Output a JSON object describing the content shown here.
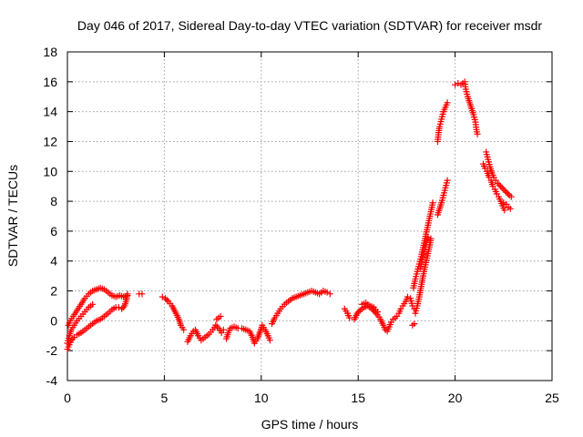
{
  "chart_data": {
    "type": "scatter",
    "title": "Day 046 of 2017, Sidereal Day-to-day VTEC variation (SDTVAR) for receiver msdr",
    "xlabel": "GPS time / hours",
    "ylabel": "SDTVAR / TECUs",
    "xlim": [
      0,
      25
    ],
    "ylim": [
      -4,
      18
    ],
    "xticks": [
      0,
      5,
      10,
      15,
      20,
      25
    ],
    "yticks": [
      -4,
      -2,
      0,
      2,
      4,
      6,
      8,
      10,
      12,
      14,
      16,
      18
    ],
    "grid": true,
    "marker": "+",
    "series": [
      {
        "name": "SDTVAR",
        "color": "#ff0000",
        "segments": [
          [
            [
              0.0,
              -1.9
            ],
            [
              0.1,
              -1.6
            ],
            [
              0.2,
              -1.3
            ],
            [
              0.35,
              -1.1
            ],
            [
              0.5,
              -0.95
            ],
            [
              0.7,
              -0.8
            ],
            [
              0.9,
              -0.6
            ],
            [
              1.1,
              -0.4
            ],
            [
              1.3,
              -0.2
            ],
            [
              1.5,
              0.0
            ],
            [
              1.7,
              0.1
            ],
            [
              1.9,
              0.3
            ],
            [
              2.1,
              0.5
            ],
            [
              2.3,
              0.75
            ],
            [
              2.5,
              0.9
            ],
            [
              2.65,
              0.9
            ],
            [
              2.8,
              0.8
            ],
            [
              2.95,
              1.0
            ],
            [
              3.05,
              1.4
            ],
            [
              3.1,
              1.8
            ]
          ],
          [
            [
              0.0,
              -1.5
            ],
            [
              0.1,
              -1.0
            ],
            [
              0.2,
              -0.6
            ],
            [
              0.35,
              -0.3
            ],
            [
              0.5,
              0.0
            ],
            [
              0.7,
              0.3
            ],
            [
              0.9,
              0.6
            ],
            [
              1.1,
              0.9
            ],
            [
              1.3,
              1.1
            ]
          ],
          [
            [
              0.05,
              -0.3
            ],
            [
              0.15,
              0.0
            ],
            [
              0.3,
              0.3
            ],
            [
              0.5,
              0.7
            ],
            [
              0.7,
              1.1
            ],
            [
              0.9,
              1.5
            ],
            [
              1.1,
              1.8
            ],
            [
              1.3,
              2.0
            ],
            [
              1.5,
              2.1
            ],
            [
              1.7,
              2.2
            ],
            [
              1.9,
              2.1
            ],
            [
              2.1,
              1.9
            ],
            [
              2.3,
              1.7
            ],
            [
              2.5,
              1.6
            ],
            [
              2.7,
              1.7
            ],
            [
              2.9,
              1.6
            ],
            [
              3.1,
              1.7
            ]
          ],
          [
            [
              3.7,
              1.8
            ],
            [
              3.85,
              1.8
            ]
          ],
          [
            [
              4.9,
              1.6
            ],
            [
              5.05,
              1.5
            ],
            [
              5.2,
              1.3
            ],
            [
              5.4,
              1.0
            ],
            [
              5.6,
              0.5
            ],
            [
              5.75,
              0.1
            ],
            [
              5.85,
              -0.3
            ],
            [
              6.0,
              -0.6
            ]
          ],
          [
            [
              6.2,
              -1.4
            ],
            [
              6.35,
              -1.0
            ],
            [
              6.5,
              -0.7
            ],
            [
              6.6,
              -0.6
            ],
            [
              6.75,
              -1.0
            ],
            [
              6.9,
              -1.3
            ],
            [
              7.1,
              -1.1
            ],
            [
              7.3,
              -0.9
            ],
            [
              7.5,
              -0.6
            ],
            [
              7.65,
              -0.3
            ],
            [
              7.8,
              -0.5
            ],
            [
              7.95,
              -0.8
            ],
            [
              8.05,
              -0.6
            ]
          ],
          [
            [
              7.7,
              0.1
            ],
            [
              7.9,
              0.3
            ]
          ],
          [
            [
              8.2,
              -1.2
            ],
            [
              8.3,
              -0.8
            ],
            [
              8.4,
              -0.5
            ],
            [
              8.6,
              -0.4
            ],
            [
              8.8,
              -0.5
            ],
            [
              9.0,
              -0.5
            ],
            [
              9.2,
              -0.6
            ],
            [
              9.4,
              -0.7
            ],
            [
              9.55,
              -1.1
            ],
            [
              9.65,
              -1.5
            ],
            [
              9.8,
              -1.2
            ],
            [
              9.95,
              -0.7
            ],
            [
              10.05,
              -0.3
            ],
            [
              10.2,
              -0.6
            ],
            [
              10.35,
              -1.0
            ],
            [
              10.45,
              -1.3
            ]
          ],
          [
            [
              10.55,
              -0.2
            ],
            [
              10.7,
              0.2
            ],
            [
              10.85,
              0.5
            ],
            [
              11.0,
              0.8
            ],
            [
              11.2,
              1.1
            ],
            [
              11.4,
              1.3
            ],
            [
              11.6,
              1.5
            ],
            [
              11.8,
              1.6
            ],
            [
              12.0,
              1.7
            ],
            [
              12.2,
              1.8
            ],
            [
              12.4,
              1.9
            ],
            [
              12.6,
              2.0
            ],
            [
              12.8,
              1.9
            ],
            [
              13.0,
              1.8
            ],
            [
              13.2,
              2.0
            ],
            [
              13.4,
              1.9
            ],
            [
              13.55,
              1.8
            ]
          ],
          [
            [
              14.3,
              0.8
            ],
            [
              14.45,
              0.5
            ],
            [
              14.55,
              0.2
            ]
          ],
          [
            [
              14.8,
              0.1
            ],
            [
              14.95,
              0.5
            ],
            [
              15.1,
              0.7
            ],
            [
              15.3,
              0.9
            ],
            [
              15.5,
              1.0
            ],
            [
              15.7,
              0.8
            ],
            [
              15.85,
              0.6
            ],
            [
              16.0,
              0.4
            ],
            [
              16.15,
              0.1
            ],
            [
              16.3,
              -0.3
            ],
            [
              16.4,
              -0.6
            ],
            [
              16.5,
              -0.7
            ],
            [
              16.6,
              -0.4
            ],
            [
              16.7,
              -0.1
            ],
            [
              16.8,
              0.1
            ],
            [
              16.9,
              0.2
            ],
            [
              17.0,
              0.3
            ],
            [
              17.1,
              0.5
            ],
            [
              17.2,
              0.8
            ],
            [
              17.3,
              1.0
            ],
            [
              17.45,
              1.3
            ],
            [
              17.55,
              1.6
            ],
            [
              17.7,
              1.5
            ],
            [
              17.8,
              1.0
            ],
            [
              17.9,
              0.8
            ]
          ],
          [
            [
              15.2,
              1.1
            ],
            [
              15.4,
              1.2
            ],
            [
              15.6,
              1.0
            ],
            [
              15.8,
              0.9
            ],
            [
              16.0,
              0.6
            ]
          ],
          [
            [
              17.8,
              -0.3
            ],
            [
              17.9,
              -0.2
            ]
          ],
          [
            [
              17.95,
              0.5
            ],
            [
              18.05,
              1.0
            ],
            [
              18.15,
              1.6
            ],
            [
              18.25,
              2.3
            ],
            [
              18.35,
              3.0
            ],
            [
              18.45,
              3.6
            ],
            [
              18.55,
              4.2
            ],
            [
              18.65,
              4.8
            ],
            [
              18.75,
              5.5
            ]
          ],
          [
            [
              17.85,
              2.2
            ],
            [
              17.95,
              2.8
            ],
            [
              18.05,
              3.3
            ],
            [
              18.15,
              3.8
            ],
            [
              18.25,
              4.3
            ],
            [
              18.35,
              4.9
            ],
            [
              18.45,
              5.5
            ],
            [
              18.55,
              6.1
            ],
            [
              18.65,
              6.7
            ],
            [
              18.75,
              7.3
            ],
            [
              18.85,
              7.9
            ]
          ],
          [
            [
              18.2,
              3.5
            ],
            [
              18.3,
              4.1
            ],
            [
              18.4,
              4.6
            ],
            [
              18.5,
              5.1
            ],
            [
              18.6,
              5.6
            ]
          ],
          [
            [
              19.1,
              7.1
            ],
            [
              19.2,
              7.5
            ],
            [
              19.3,
              7.9
            ],
            [
              19.4,
              8.4
            ],
            [
              19.5,
              8.9
            ],
            [
              19.6,
              9.4
            ]
          ],
          [
            [
              19.1,
              12.0
            ],
            [
              19.15,
              12.6
            ],
            [
              19.2,
              13.0
            ],
            [
              19.3,
              13.5
            ],
            [
              19.4,
              14.0
            ],
            [
              19.5,
              14.3
            ],
            [
              19.6,
              14.6
            ]
          ],
          [
            [
              20.0,
              15.8
            ],
            [
              20.15,
              15.9
            ],
            [
              20.3,
              15.8
            ],
            [
              20.4,
              15.9
            ],
            [
              20.5,
              16.0
            ],
            [
              20.55,
              15.5
            ],
            [
              20.65,
              15.0
            ],
            [
              20.75,
              14.6
            ],
            [
              20.85,
              14.2
            ],
            [
              20.95,
              13.8
            ],
            [
              21.05,
              13.3
            ],
            [
              21.1,
              12.8
            ],
            [
              21.15,
              12.5
            ]
          ],
          [
            [
              21.45,
              10.5
            ],
            [
              21.55,
              10.2
            ],
            [
              21.65,
              10.0
            ],
            [
              21.75,
              9.6
            ],
            [
              21.85,
              9.4
            ],
            [
              21.95,
              9.0
            ],
            [
              22.05,
              8.8
            ],
            [
              22.15,
              8.5
            ],
            [
              22.25,
              8.3
            ],
            [
              22.35,
              8.0
            ],
            [
              22.45,
              7.7
            ],
            [
              22.55,
              7.4
            ]
          ],
          [
            [
              21.6,
              11.3
            ],
            [
              21.7,
              10.8
            ],
            [
              21.8,
              10.3
            ],
            [
              21.9,
              9.9
            ],
            [
              22.0,
              9.6
            ],
            [
              22.1,
              9.4
            ],
            [
              22.2,
              9.2
            ],
            [
              22.35,
              9.0
            ],
            [
              22.5,
              8.8
            ],
            [
              22.65,
              8.6
            ],
            [
              22.8,
              8.4
            ],
            [
              22.9,
              8.3
            ]
          ],
          [
            [
              22.5,
              7.9
            ],
            [
              22.65,
              7.8
            ],
            [
              22.75,
              7.6
            ],
            [
              22.85,
              7.5
            ]
          ]
        ]
      }
    ]
  }
}
